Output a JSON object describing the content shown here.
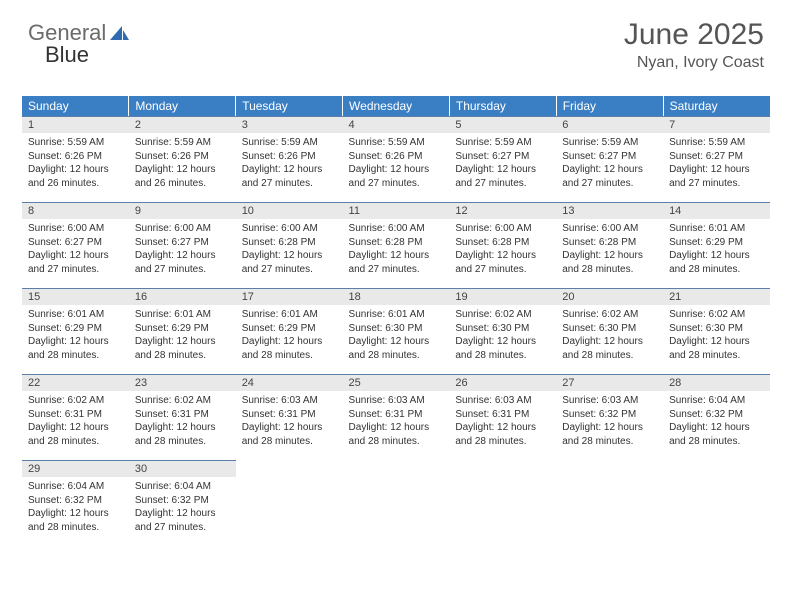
{
  "logo": {
    "word1": "General",
    "word2": "Blue"
  },
  "header": {
    "month_title": "June 2025",
    "location": "Nyan, Ivory Coast"
  },
  "colors": {
    "header_bg": "#3a7fc4",
    "daynum_bg": "#e9e9e9",
    "row_divider": "#5b7fa8",
    "text": "#333333",
    "title_text": "#555555",
    "logo_gray": "#6b6b6b",
    "logo_blue": "#3a7fc4",
    "page_bg": "#ffffff"
  },
  "weekdays": [
    "Sunday",
    "Monday",
    "Tuesday",
    "Wednesday",
    "Thursday",
    "Friday",
    "Saturday"
  ],
  "calendar_type": "month-grid",
  "days": [
    {
      "n": "1",
      "sunrise": "Sunrise: 5:59 AM",
      "sunset": "Sunset: 6:26 PM",
      "d1": "Daylight: 12 hours",
      "d2": "and 26 minutes."
    },
    {
      "n": "2",
      "sunrise": "Sunrise: 5:59 AM",
      "sunset": "Sunset: 6:26 PM",
      "d1": "Daylight: 12 hours",
      "d2": "and 26 minutes."
    },
    {
      "n": "3",
      "sunrise": "Sunrise: 5:59 AM",
      "sunset": "Sunset: 6:26 PM",
      "d1": "Daylight: 12 hours",
      "d2": "and 27 minutes."
    },
    {
      "n": "4",
      "sunrise": "Sunrise: 5:59 AM",
      "sunset": "Sunset: 6:26 PM",
      "d1": "Daylight: 12 hours",
      "d2": "and 27 minutes."
    },
    {
      "n": "5",
      "sunrise": "Sunrise: 5:59 AM",
      "sunset": "Sunset: 6:27 PM",
      "d1": "Daylight: 12 hours",
      "d2": "and 27 minutes."
    },
    {
      "n": "6",
      "sunrise": "Sunrise: 5:59 AM",
      "sunset": "Sunset: 6:27 PM",
      "d1": "Daylight: 12 hours",
      "d2": "and 27 minutes."
    },
    {
      "n": "7",
      "sunrise": "Sunrise: 5:59 AM",
      "sunset": "Sunset: 6:27 PM",
      "d1": "Daylight: 12 hours",
      "d2": "and 27 minutes."
    },
    {
      "n": "8",
      "sunrise": "Sunrise: 6:00 AM",
      "sunset": "Sunset: 6:27 PM",
      "d1": "Daylight: 12 hours",
      "d2": "and 27 minutes."
    },
    {
      "n": "9",
      "sunrise": "Sunrise: 6:00 AM",
      "sunset": "Sunset: 6:27 PM",
      "d1": "Daylight: 12 hours",
      "d2": "and 27 minutes."
    },
    {
      "n": "10",
      "sunrise": "Sunrise: 6:00 AM",
      "sunset": "Sunset: 6:28 PM",
      "d1": "Daylight: 12 hours",
      "d2": "and 27 minutes."
    },
    {
      "n": "11",
      "sunrise": "Sunrise: 6:00 AM",
      "sunset": "Sunset: 6:28 PM",
      "d1": "Daylight: 12 hours",
      "d2": "and 27 minutes."
    },
    {
      "n": "12",
      "sunrise": "Sunrise: 6:00 AM",
      "sunset": "Sunset: 6:28 PM",
      "d1": "Daylight: 12 hours",
      "d2": "and 27 minutes."
    },
    {
      "n": "13",
      "sunrise": "Sunrise: 6:00 AM",
      "sunset": "Sunset: 6:28 PM",
      "d1": "Daylight: 12 hours",
      "d2": "and 28 minutes."
    },
    {
      "n": "14",
      "sunrise": "Sunrise: 6:01 AM",
      "sunset": "Sunset: 6:29 PM",
      "d1": "Daylight: 12 hours",
      "d2": "and 28 minutes."
    },
    {
      "n": "15",
      "sunrise": "Sunrise: 6:01 AM",
      "sunset": "Sunset: 6:29 PM",
      "d1": "Daylight: 12 hours",
      "d2": "and 28 minutes."
    },
    {
      "n": "16",
      "sunrise": "Sunrise: 6:01 AM",
      "sunset": "Sunset: 6:29 PM",
      "d1": "Daylight: 12 hours",
      "d2": "and 28 minutes."
    },
    {
      "n": "17",
      "sunrise": "Sunrise: 6:01 AM",
      "sunset": "Sunset: 6:29 PM",
      "d1": "Daylight: 12 hours",
      "d2": "and 28 minutes."
    },
    {
      "n": "18",
      "sunrise": "Sunrise: 6:01 AM",
      "sunset": "Sunset: 6:30 PM",
      "d1": "Daylight: 12 hours",
      "d2": "and 28 minutes."
    },
    {
      "n": "19",
      "sunrise": "Sunrise: 6:02 AM",
      "sunset": "Sunset: 6:30 PM",
      "d1": "Daylight: 12 hours",
      "d2": "and 28 minutes."
    },
    {
      "n": "20",
      "sunrise": "Sunrise: 6:02 AM",
      "sunset": "Sunset: 6:30 PM",
      "d1": "Daylight: 12 hours",
      "d2": "and 28 minutes."
    },
    {
      "n": "21",
      "sunrise": "Sunrise: 6:02 AM",
      "sunset": "Sunset: 6:30 PM",
      "d1": "Daylight: 12 hours",
      "d2": "and 28 minutes."
    },
    {
      "n": "22",
      "sunrise": "Sunrise: 6:02 AM",
      "sunset": "Sunset: 6:31 PM",
      "d1": "Daylight: 12 hours",
      "d2": "and 28 minutes."
    },
    {
      "n": "23",
      "sunrise": "Sunrise: 6:02 AM",
      "sunset": "Sunset: 6:31 PM",
      "d1": "Daylight: 12 hours",
      "d2": "and 28 minutes."
    },
    {
      "n": "24",
      "sunrise": "Sunrise: 6:03 AM",
      "sunset": "Sunset: 6:31 PM",
      "d1": "Daylight: 12 hours",
      "d2": "and 28 minutes."
    },
    {
      "n": "25",
      "sunrise": "Sunrise: 6:03 AM",
      "sunset": "Sunset: 6:31 PM",
      "d1": "Daylight: 12 hours",
      "d2": "and 28 minutes."
    },
    {
      "n": "26",
      "sunrise": "Sunrise: 6:03 AM",
      "sunset": "Sunset: 6:31 PM",
      "d1": "Daylight: 12 hours",
      "d2": "and 28 minutes."
    },
    {
      "n": "27",
      "sunrise": "Sunrise: 6:03 AM",
      "sunset": "Sunset: 6:32 PM",
      "d1": "Daylight: 12 hours",
      "d2": "and 28 minutes."
    },
    {
      "n": "28",
      "sunrise": "Sunrise: 6:04 AM",
      "sunset": "Sunset: 6:32 PM",
      "d1": "Daylight: 12 hours",
      "d2": "and 28 minutes."
    },
    {
      "n": "29",
      "sunrise": "Sunrise: 6:04 AM",
      "sunset": "Sunset: 6:32 PM",
      "d1": "Daylight: 12 hours",
      "d2": "and 28 minutes."
    },
    {
      "n": "30",
      "sunrise": "Sunrise: 6:04 AM",
      "sunset": "Sunset: 6:32 PM",
      "d1": "Daylight: 12 hours",
      "d2": "and 27 minutes."
    }
  ]
}
